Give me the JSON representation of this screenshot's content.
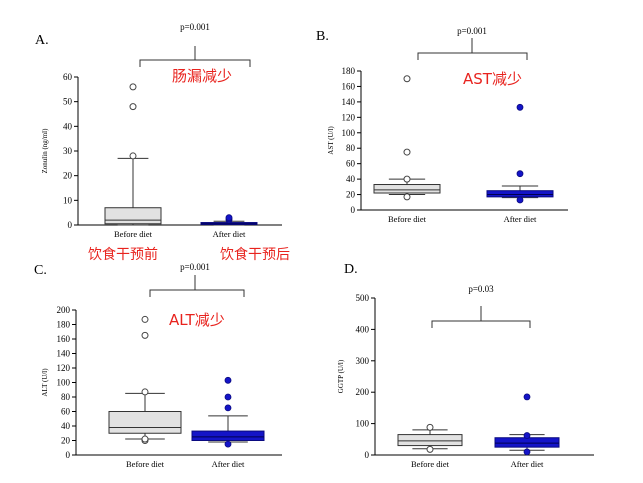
{
  "colors": {
    "before_fill": "#e2e2e2",
    "after_fill": "#1414c8",
    "after_stroke": "#0a0a80",
    "annotation": "#e8231e"
  },
  "chart_data": [
    {
      "id": "A",
      "type": "box",
      "panel_label": "A.",
      "ylabel": "Zonulin (ng/ml)",
      "ylim": [
        0,
        60
      ],
      "yticks": [
        0,
        10,
        20,
        30,
        40,
        50,
        60
      ],
      "categories": [
        "Before diet",
        "After diet"
      ],
      "series": [
        {
          "name": "Before diet",
          "whisker_low": 0,
          "q1": 0.5,
          "median": 2,
          "q3": 7,
          "whisker_high": 27,
          "outliers": [
            28,
            48,
            56
          ]
        },
        {
          "name": "After diet",
          "whisker_low": 0,
          "q1": 0.2,
          "median": 0.5,
          "q3": 1,
          "whisker_high": 1.5,
          "outliers": [
            2,
            2.5,
            3
          ]
        }
      ],
      "p_value": "p=0.001",
      "annotation": "肠漏减少",
      "category_annotations": [
        "饮食干预前",
        "饮食干预后"
      ]
    },
    {
      "id": "B",
      "type": "box",
      "panel_label": "B.",
      "ylabel": "AST (U/l)",
      "ylim": [
        0,
        180
      ],
      "yticks": [
        0,
        20,
        40,
        60,
        80,
        100,
        120,
        140,
        160,
        180
      ],
      "categories": [
        "Before diet",
        "After diet"
      ],
      "series": [
        {
          "name": "Before diet",
          "whisker_low": 20,
          "q1": 22,
          "median": 26,
          "q3": 33,
          "whisker_high": 40,
          "outliers": [
            17,
            40,
            75,
            170
          ]
        },
        {
          "name": "After diet",
          "whisker_low": 16,
          "q1": 17,
          "median": 20,
          "q3": 25,
          "whisker_high": 31,
          "outliers": [
            13,
            47,
            133
          ]
        }
      ],
      "p_value": "p=0.001",
      "annotation": "AST减少"
    },
    {
      "id": "C",
      "type": "box",
      "panel_label": "C.",
      "ylabel": "ALT (U/l)",
      "ylim": [
        0,
        200
      ],
      "yticks": [
        0,
        20,
        40,
        60,
        80,
        100,
        120,
        140,
        160,
        180,
        200
      ],
      "categories": [
        "Before diet",
        "After diet"
      ],
      "series": [
        {
          "name": "Before diet",
          "whisker_low": 22,
          "q1": 30,
          "median": 38,
          "q3": 60,
          "whisker_high": 85,
          "outliers": [
            20,
            22,
            87,
            165,
            187
          ]
        },
        {
          "name": "After diet",
          "whisker_low": 18,
          "q1": 20,
          "median": 25,
          "q3": 33,
          "whisker_high": 54,
          "outliers": [
            15,
            65,
            80,
            103
          ]
        }
      ],
      "p_value": "p=0.001",
      "annotation": "ALT减少"
    },
    {
      "id": "D",
      "type": "box",
      "panel_label": "D.",
      "ylabel": "GGTP (U/l)",
      "ylim": [
        0,
        500
      ],
      "yticks": [
        0,
        100,
        200,
        300,
        400,
        500
      ],
      "categories": [
        "Before diet",
        "After diet"
      ],
      "series": [
        {
          "name": "Before diet",
          "whisker_low": 20,
          "q1": 30,
          "median": 45,
          "q3": 65,
          "whisker_high": 80,
          "outliers": [
            18,
            88
          ]
        },
        {
          "name": "After diet",
          "whisker_low": 15,
          "q1": 25,
          "median": 38,
          "q3": 55,
          "whisker_high": 65,
          "outliers": [
            10,
            62,
            185
          ]
        }
      ],
      "p_value": "p=0.03"
    }
  ]
}
